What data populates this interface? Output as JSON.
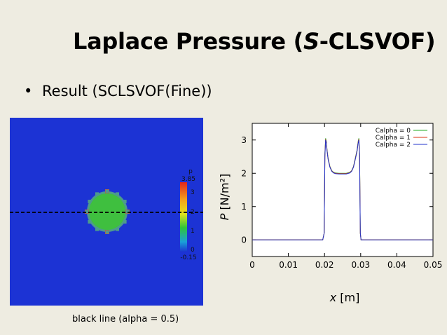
{
  "slide": {
    "title_prefix": "Laplace Pressure (",
    "title_italic": "S",
    "title_suffix": "-CLSVOF)",
    "bullet": "Result (SCLSVOF(Fine))",
    "caption": "black line (alpha = 0.5)"
  },
  "colors": {
    "background": "#eeece1",
    "sim_field": "#1c33d4",
    "sim_drop": "#3fbf3f",
    "sim_edge": "#4d9b8c",
    "sim_hot": "#d94a2a",
    "calpha0": "#22aa22",
    "calpha1": "#dd3311",
    "calpha2": "#2233cc",
    "marker": "#000000"
  },
  "colorbar": {
    "title": "p",
    "max_label": "3.85",
    "min_label": "-0.15",
    "ticks": [
      "3",
      "2",
      "1",
      "0"
    ]
  },
  "chart_data": {
    "type": "line",
    "xlabel": "x [m]",
    "ylabel": "P [N/m²]",
    "xlim": [
      0,
      0.05
    ],
    "ylim": [
      -0.5,
      3.5
    ],
    "xticks": [
      0,
      0.01,
      0.02,
      0.03,
      0.04,
      0.05
    ],
    "xtick_labels": [
      "0",
      "0.01",
      "0.02",
      "0.03",
      "0.04",
      "0.05"
    ],
    "yticks": [
      0,
      1,
      2,
      3
    ],
    "ytick_labels": [
      "0",
      "1",
      "2",
      "3"
    ],
    "grid": false,
    "legend": "top-right",
    "series": [
      {
        "name": "Calpha = 0",
        "x": [
          0,
          0.0195,
          0.0199,
          0.0201,
          0.0203,
          0.0205,
          0.0207,
          0.021,
          0.0215,
          0.022,
          0.0225,
          0.023,
          0.024,
          0.025,
          0.026,
          0.027,
          0.0275,
          0.028,
          0.0285,
          0.029,
          0.0293,
          0.0295,
          0.0297,
          0.0299,
          0.0301,
          0.0305,
          0.05
        ],
        "y": [
          0,
          0,
          0.2,
          2.6,
          3.05,
          2.95,
          2.7,
          2.45,
          2.2,
          2.08,
          2.03,
          2.01,
          2.0,
          2.0,
          2.0,
          2.03,
          2.08,
          2.2,
          2.45,
          2.7,
          2.95,
          3.05,
          2.6,
          0.2,
          0,
          0,
          0
        ]
      },
      {
        "name": "Calpha = 1",
        "x": [
          0,
          0.0195,
          0.0199,
          0.0201,
          0.0203,
          0.0205,
          0.0207,
          0.021,
          0.0215,
          0.022,
          0.0225,
          0.023,
          0.024,
          0.025,
          0.026,
          0.027,
          0.0275,
          0.028,
          0.0285,
          0.029,
          0.0293,
          0.0295,
          0.0297,
          0.0299,
          0.0301,
          0.0305,
          0.05
        ],
        "y": [
          0,
          0,
          0.2,
          2.55,
          3.02,
          2.93,
          2.68,
          2.43,
          2.19,
          2.07,
          2.02,
          2.0,
          1.99,
          1.99,
          1.99,
          2.02,
          2.07,
          2.19,
          2.43,
          2.68,
          2.93,
          3.02,
          2.55,
          0.2,
          0,
          0,
          0
        ]
      },
      {
        "name": "Calpha = 2",
        "x": [
          0,
          0.0195,
          0.0199,
          0.0201,
          0.0203,
          0.0205,
          0.0207,
          0.021,
          0.0215,
          0.022,
          0.0225,
          0.023,
          0.024,
          0.025,
          0.026,
          0.027,
          0.0275,
          0.028,
          0.0285,
          0.029,
          0.0293,
          0.0295,
          0.0297,
          0.0299,
          0.0301,
          0.0305,
          0.05
        ],
        "y": [
          0,
          0,
          0.2,
          2.5,
          3.0,
          2.9,
          2.66,
          2.41,
          2.18,
          2.06,
          2.01,
          1.99,
          1.98,
          1.98,
          1.98,
          2.01,
          2.06,
          2.18,
          2.41,
          2.66,
          2.9,
          3.0,
          2.5,
          0.2,
          0,
          0,
          0
        ]
      }
    ]
  }
}
